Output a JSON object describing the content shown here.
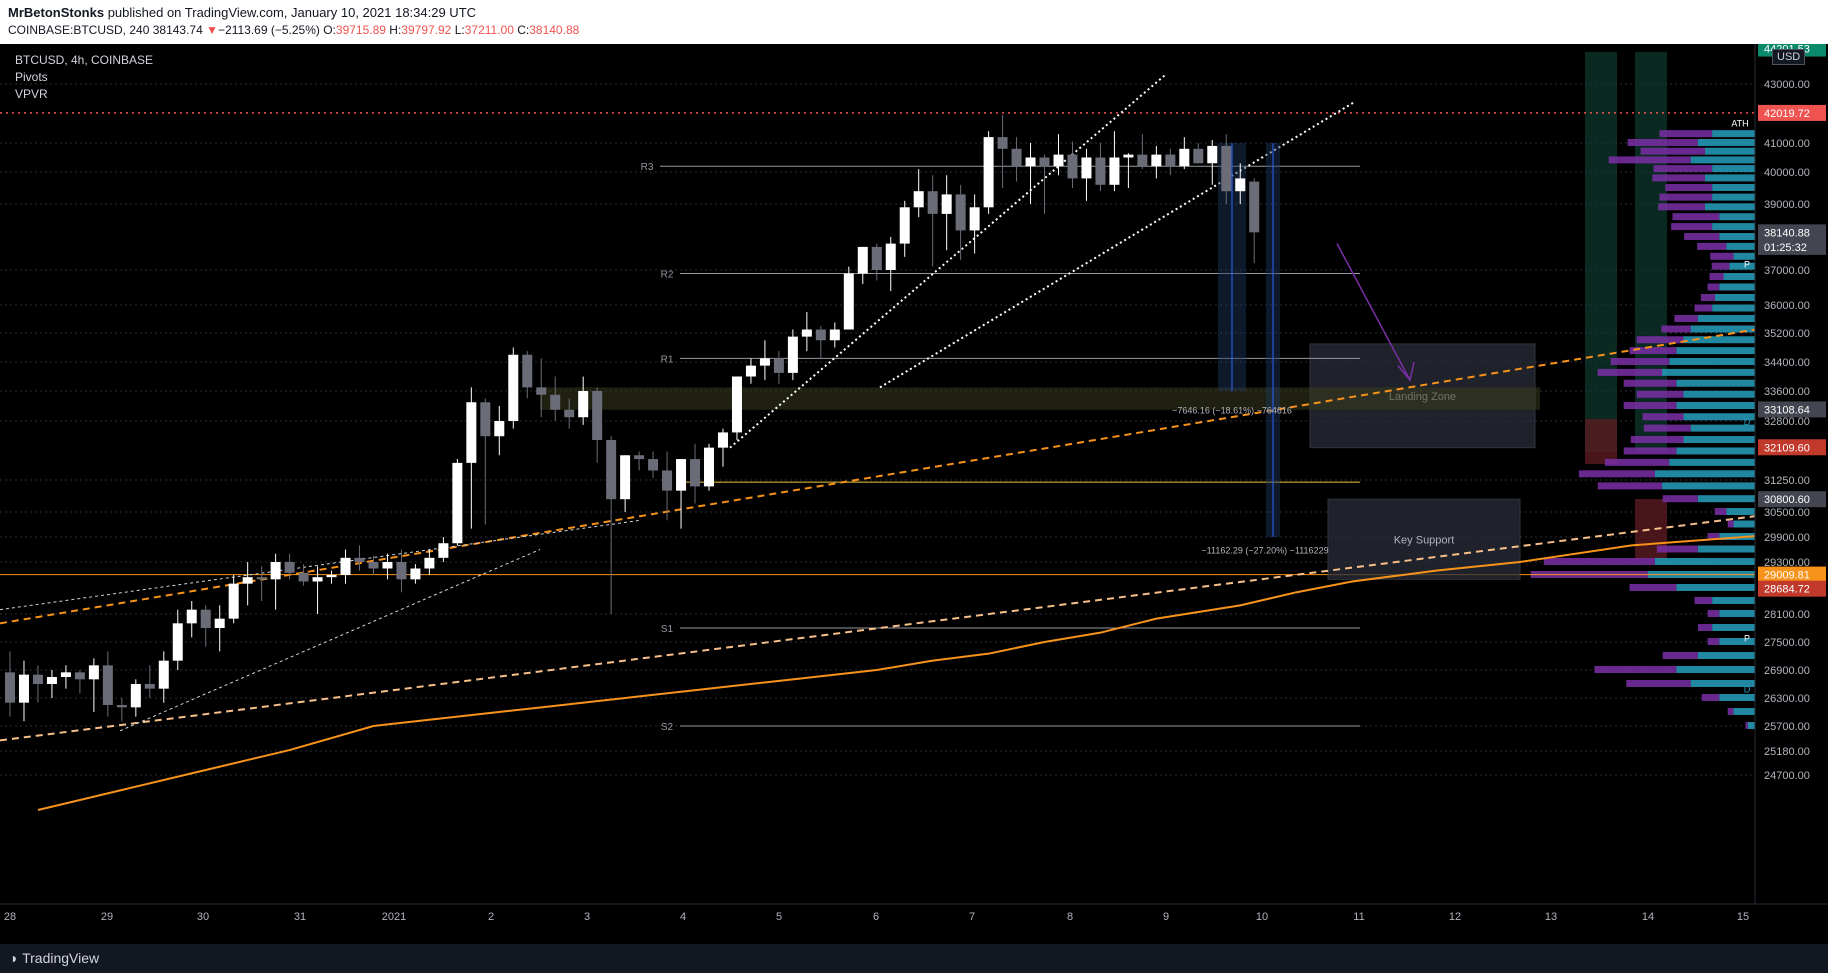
{
  "header": {
    "author": "MrBetonStonks",
    "published": "published on TradingView.com, January 10, 2021 18:34:29 UTC",
    "symbol": "COINBASE:BTCUSD, 240",
    "last": "38143.74",
    "arrow": "▼",
    "change": "−2113.69 (−5.25%)",
    "o_label": "O:",
    "o_val": "39715.89",
    "h_label": "H:",
    "h_val": "39797.92",
    "l_label": "L:",
    "l_val": "37211.00",
    "c_label": "C:",
    "c_val": "38140.88"
  },
  "legend": {
    "title": "BTCUSD, 4h, COINBASE",
    "indicators": [
      "Pivots",
      "VPVR"
    ]
  },
  "currency": "USD",
  "footer": {
    "brand": "TradingView"
  },
  "colors": {
    "background": "#000000",
    "bull": "#ffffff",
    "bear": "#6a6d78",
    "ema": "#f7931a",
    "trend_dashed": "#f7931a",
    "ath_line": "#ef5350",
    "vpvr_up": "#26a0bd",
    "vpvr_down": "#7b2fa6"
  },
  "chart_data": {
    "type": "candlestick",
    "y_axis": {
      "ylim": [
        24400,
        45100
      ],
      "ticks": [
        43000,
        41000,
        40000,
        39000,
        37000,
        36000,
        35200,
        34400,
        33600,
        32800,
        31250,
        30500,
        29900,
        29300,
        28100,
        27500,
        26900,
        26300,
        25700,
        25180,
        24700
      ]
    },
    "x_axis": {
      "ticks": [
        "28",
        "29",
        "30",
        "31",
        "2021",
        "2",
        "3",
        "4",
        "5",
        "6",
        "7",
        "8",
        "9",
        "10",
        "11",
        "12",
        "13",
        "14",
        "15"
      ]
    },
    "price_labels": [
      {
        "value": "44201.53",
        "price": 44201.53,
        "color": "#0a8a6a"
      },
      {
        "value": "42019.72",
        "price": 42019.72,
        "color": "#ef5350"
      },
      {
        "value": "38140.88",
        "price": 38140.88,
        "color": "#434651"
      },
      {
        "value": "01:25:32",
        "price": 37700,
        "color": "#434651"
      },
      {
        "value": "33108.64",
        "price": 33108.64,
        "color": "#434651"
      },
      {
        "value": "32109.60",
        "price": 32109.6,
        "color": "#c0392b"
      },
      {
        "value": "30800.60",
        "price": 30800.6,
        "color": "#434651"
      },
      {
        "value": "29009.81",
        "price": 29009.81,
        "color": "#f7931a"
      },
      {
        "value": "28684.72",
        "price": 28684.72,
        "color": "#c0392b"
      }
    ],
    "candles": [
      {
        "o": 26850,
        "h": 27300,
        "l": 25900,
        "c": 26200
      },
      {
        "o": 26200,
        "h": 27100,
        "l": 25800,
        "c": 26800
      },
      {
        "o": 26800,
        "h": 27000,
        "l": 26200,
        "c": 26600
      },
      {
        "o": 26600,
        "h": 26900,
        "l": 26300,
        "c": 26750
      },
      {
        "o": 26750,
        "h": 27000,
        "l": 26500,
        "c": 26850
      },
      {
        "o": 26850,
        "h": 26900,
        "l": 26400,
        "c": 26700
      },
      {
        "o": 26700,
        "h": 27150,
        "l": 26000,
        "c": 27000
      },
      {
        "o": 27000,
        "h": 27300,
        "l": 25900,
        "c": 26150
      },
      {
        "o": 26150,
        "h": 26300,
        "l": 25800,
        "c": 26100
      },
      {
        "o": 26100,
        "h": 26700,
        "l": 25900,
        "c": 26600
      },
      {
        "o": 26600,
        "h": 27000,
        "l": 26300,
        "c": 26500
      },
      {
        "o": 26500,
        "h": 27300,
        "l": 26200,
        "c": 27100
      },
      {
        "o": 27100,
        "h": 28200,
        "l": 26900,
        "c": 27900
      },
      {
        "o": 27900,
        "h": 28400,
        "l": 27600,
        "c": 28200
      },
      {
        "o": 28200,
        "h": 28300,
        "l": 27400,
        "c": 27800
      },
      {
        "o": 27800,
        "h": 28300,
        "l": 27300,
        "c": 28000
      },
      {
        "o": 28000,
        "h": 29000,
        "l": 27900,
        "c": 28800
      },
      {
        "o": 28800,
        "h": 29300,
        "l": 28300,
        "c": 28950
      },
      {
        "o": 28950,
        "h": 29200,
        "l": 28400,
        "c": 28900
      },
      {
        "o": 28900,
        "h": 29500,
        "l": 28200,
        "c": 29300
      },
      {
        "o": 29300,
        "h": 29500,
        "l": 28900,
        "c": 29050
      },
      {
        "o": 29050,
        "h": 29250,
        "l": 28750,
        "c": 28850
      },
      {
        "o": 28850,
        "h": 29200,
        "l": 28100,
        "c": 28950
      },
      {
        "o": 28950,
        "h": 29100,
        "l": 28800,
        "c": 29000
      },
      {
        "o": 29000,
        "h": 29600,
        "l": 28800,
        "c": 29400
      },
      {
        "o": 29400,
        "h": 29700,
        "l": 29100,
        "c": 29300
      },
      {
        "o": 29300,
        "h": 29450,
        "l": 29000,
        "c": 29150
      },
      {
        "o": 29150,
        "h": 29500,
        "l": 28900,
        "c": 29300
      },
      {
        "o": 29300,
        "h": 29600,
        "l": 28600,
        "c": 28900
      },
      {
        "o": 28900,
        "h": 29250,
        "l": 28800,
        "c": 29150
      },
      {
        "o": 29150,
        "h": 29600,
        "l": 29000,
        "c": 29400
      },
      {
        "o": 29400,
        "h": 29900,
        "l": 29300,
        "c": 29750
      },
      {
        "o": 29750,
        "h": 31800,
        "l": 29700,
        "c": 31700
      },
      {
        "o": 31700,
        "h": 33700,
        "l": 30100,
        "c": 33300
      },
      {
        "o": 33300,
        "h": 33400,
        "l": 30200,
        "c": 32400
      },
      {
        "o": 32400,
        "h": 33200,
        "l": 31900,
        "c": 32800
      },
      {
        "o": 32800,
        "h": 34800,
        "l": 32600,
        "c": 34600
      },
      {
        "o": 34600,
        "h": 34700,
        "l": 33400,
        "c": 33700
      },
      {
        "o": 33700,
        "h": 34500,
        "l": 32900,
        "c": 33500
      },
      {
        "o": 33500,
        "h": 34000,
        "l": 32800,
        "c": 33100
      },
      {
        "o": 33100,
        "h": 33400,
        "l": 32600,
        "c": 32900
      },
      {
        "o": 32900,
        "h": 34000,
        "l": 32700,
        "c": 33600
      },
      {
        "o": 33600,
        "h": 33700,
        "l": 31700,
        "c": 32300
      },
      {
        "o": 32300,
        "h": 32400,
        "l": 28100,
        "c": 30800
      },
      {
        "o": 30800,
        "h": 31900,
        "l": 30500,
        "c": 31900
      },
      {
        "o": 31900,
        "h": 32000,
        "l": 31500,
        "c": 31800
      },
      {
        "o": 31800,
        "h": 32000,
        "l": 31300,
        "c": 31500
      },
      {
        "o": 31500,
        "h": 32000,
        "l": 30300,
        "c": 31000
      },
      {
        "o": 31000,
        "h": 31800,
        "l": 30100,
        "c": 31800
      },
      {
        "o": 31800,
        "h": 32200,
        "l": 30700,
        "c": 31100
      },
      {
        "o": 31100,
        "h": 32200,
        "l": 31000,
        "c": 32100
      },
      {
        "o": 32100,
        "h": 32600,
        "l": 31600,
        "c": 32500
      },
      {
        "o": 32500,
        "h": 34000,
        "l": 32300,
        "c": 34000
      },
      {
        "o": 34000,
        "h": 34500,
        "l": 33800,
        "c": 34300
      },
      {
        "o": 34300,
        "h": 35000,
        "l": 33900,
        "c": 34500
      },
      {
        "o": 34500,
        "h": 34700,
        "l": 33800,
        "c": 34100
      },
      {
        "o": 34100,
        "h": 35300,
        "l": 33900,
        "c": 35100
      },
      {
        "o": 35100,
        "h": 35800,
        "l": 34700,
        "c": 35300
      },
      {
        "o": 35300,
        "h": 35400,
        "l": 34500,
        "c": 35000
      },
      {
        "o": 35000,
        "h": 35500,
        "l": 34800,
        "c": 35300
      },
      {
        "o": 35300,
        "h": 37100,
        "l": 35300,
        "c": 36900
      },
      {
        "o": 36900,
        "h": 37700,
        "l": 36600,
        "c": 37700
      },
      {
        "o": 37700,
        "h": 37800,
        "l": 36700,
        "c": 37000
      },
      {
        "o": 37000,
        "h": 38000,
        "l": 36400,
        "c": 37800
      },
      {
        "o": 37800,
        "h": 39100,
        "l": 37400,
        "c": 38900
      },
      {
        "o": 38900,
        "h": 40100,
        "l": 38600,
        "c": 39400
      },
      {
        "o": 39400,
        "h": 39900,
        "l": 37100,
        "c": 38700
      },
      {
        "o": 38700,
        "h": 39900,
        "l": 37600,
        "c": 39300
      },
      {
        "o": 39300,
        "h": 39600,
        "l": 37300,
        "c": 38200
      },
      {
        "o": 38200,
        "h": 39300,
        "l": 37500,
        "c": 38900
      },
      {
        "o": 38900,
        "h": 41400,
        "l": 38700,
        "c": 41200
      },
      {
        "o": 41200,
        "h": 41950,
        "l": 39500,
        "c": 40800
      },
      {
        "o": 40800,
        "h": 41200,
        "l": 39700,
        "c": 40200
      },
      {
        "o": 40200,
        "h": 41000,
        "l": 39000,
        "c": 40500
      },
      {
        "o": 40500,
        "h": 40600,
        "l": 38700,
        "c": 40200
      },
      {
        "o": 40200,
        "h": 41300,
        "l": 39900,
        "c": 40600
      },
      {
        "o": 40600,
        "h": 41050,
        "l": 39500,
        "c": 39800
      },
      {
        "o": 39800,
        "h": 40800,
        "l": 39100,
        "c": 40500
      },
      {
        "o": 40500,
        "h": 41000,
        "l": 39400,
        "c": 39600
      },
      {
        "o": 39600,
        "h": 41400,
        "l": 39400,
        "c": 40500
      },
      {
        "o": 40500,
        "h": 40650,
        "l": 39500,
        "c": 40600
      },
      {
        "o": 40600,
        "h": 41300,
        "l": 40100,
        "c": 40200
      },
      {
        "o": 40200,
        "h": 40900,
        "l": 39800,
        "c": 40600
      },
      {
        "o": 40600,
        "h": 40800,
        "l": 39900,
        "c": 40200
      },
      {
        "o": 40200,
        "h": 41200,
        "l": 40100,
        "c": 40800
      },
      {
        "o": 40800,
        "h": 41000,
        "l": 40300,
        "c": 40300
      },
      {
        "o": 40300,
        "h": 41100,
        "l": 39600,
        "c": 40900
      },
      {
        "o": 40900,
        "h": 41300,
        "l": 39000,
        "c": 39400
      },
      {
        "o": 39400,
        "h": 40300,
        "l": 39000,
        "c": 39800
      },
      {
        "o": 39700,
        "h": 39800,
        "l": 37211,
        "c": 38141
      }
    ],
    "ema_200": [
      [
        2,
        24000
      ],
      [
        8,
        24400
      ],
      [
        14,
        24800
      ],
      [
        20,
        25200
      ],
      [
        26,
        25700
      ],
      [
        32,
        25900
      ],
      [
        38,
        26100
      ],
      [
        44,
        26300
      ],
      [
        50,
        26500
      ],
      [
        56,
        26700
      ],
      [
        62,
        26900
      ],
      [
        66,
        27100
      ],
      [
        70,
        27250
      ],
      [
        74,
        27500
      ],
      [
        78,
        27700
      ],
      [
        82,
        28000
      ],
      [
        88,
        28300
      ],
      [
        92,
        28600
      ],
      [
        96,
        28850
      ],
      [
        102,
        29100
      ],
      [
        108,
        29300
      ],
      [
        116,
        29700
      ],
      [
        128,
        30000
      ],
      [
        140,
        30200
      ],
      [
        158,
        30500
      ]
    ],
    "pivots": [
      {
        "label": "R3",
        "price": 40200
      },
      {
        "label": "R2",
        "price": 36900
      },
      {
        "label": "R1",
        "price": 34500
      },
      {
        "label": "P",
        "price": 31200
      },
      {
        "label": "S1",
        "price": 27800
      },
      {
        "label": "S2",
        "price": 25700
      }
    ],
    "ath": 42019.72,
    "zones": [
      {
        "label": "Landing Zone",
        "from": 32100,
        "to": 34900
      },
      {
        "label": "Key Support",
        "from": 28900,
        "to": 30800
      }
    ],
    "measures": [
      {
        "label": "−7646.16 (−18.61%) −764616"
      },
      {
        "label": "−11162.29 (−27.20%) −1116229"
      }
    ],
    "annotations": [
      {
        "text": "ATH"
      },
      {
        "text": "P"
      },
      {
        "text": "P"
      },
      {
        "text": "D"
      },
      {
        "text": "D"
      }
    ],
    "vpvr": [
      {
        "price": 41300,
        "up": 0.3,
        "down": 0.45
      },
      {
        "price": 41000,
        "up": 0.4,
        "down": 0.6
      },
      {
        "price": 40700,
        "up": 0.35,
        "down": 0.55
      },
      {
        "price": 40400,
        "up": 0.45,
        "down": 0.7
      },
      {
        "price": 40100,
        "up": 0.3,
        "down": 0.5
      },
      {
        "price": 39800,
        "up": 0.35,
        "down": 0.45
      },
      {
        "price": 39500,
        "up": 0.3,
        "down": 0.4
      },
      {
        "price": 39200,
        "up": 0.3,
        "down": 0.45
      },
      {
        "price": 38900,
        "up": 0.35,
        "down": 0.4
      },
      {
        "price": 38600,
        "up": 0.25,
        "down": 0.4
      },
      {
        "price": 38300,
        "up": 0.3,
        "down": 0.35
      },
      {
        "price": 38000,
        "up": 0.25,
        "down": 0.3
      },
      {
        "price": 37700,
        "up": 0.2,
        "down": 0.25
      },
      {
        "price": 37400,
        "up": 0.15,
        "down": 0.2
      },
      {
        "price": 37100,
        "up": 0.18,
        "down": 0.15
      },
      {
        "price": 36800,
        "up": 0.22,
        "down": 0.12
      },
      {
        "price": 36500,
        "up": 0.25,
        "down": 0.1
      },
      {
        "price": 36200,
        "up": 0.28,
        "down": 0.12
      },
      {
        "price": 35900,
        "up": 0.3,
        "down": 0.15
      },
      {
        "price": 35600,
        "up": 0.4,
        "down": 0.2
      },
      {
        "price": 35300,
        "up": 0.45,
        "down": 0.25
      },
      {
        "price": 35000,
        "up": 0.5,
        "down": 0.4
      },
      {
        "price": 34700,
        "up": 0.55,
        "down": 0.4
      },
      {
        "price": 34400,
        "up": 0.6,
        "down": 0.5
      },
      {
        "price": 34100,
        "up": 0.65,
        "down": 0.55
      },
      {
        "price": 33800,
        "up": 0.55,
        "down": 0.45
      },
      {
        "price": 33500,
        "up": 0.5,
        "down": 0.4
      },
      {
        "price": 33200,
        "up": 0.55,
        "down": 0.45
      },
      {
        "price": 32900,
        "up": 0.5,
        "down": 0.35
      },
      {
        "price": 32600,
        "up": 0.45,
        "down": 0.4
      },
      {
        "price": 32300,
        "up": 0.5,
        "down": 0.45
      },
      {
        "price": 32000,
        "up": 0.55,
        "down": 0.45
      },
      {
        "price": 31700,
        "up": 0.6,
        "down": 0.55
      },
      {
        "price": 31400,
        "up": 0.7,
        "down": 0.65
      },
      {
        "price": 31100,
        "up": 0.65,
        "down": 0.55
      },
      {
        "price": 30800,
        "up": 0.4,
        "down": 0.3
      },
      {
        "price": 30500,
        "up": 0.2,
        "down": 0.1
      },
      {
        "price": 30200,
        "up": 0.15,
        "down": 0.05
      },
      {
        "price": 29900,
        "up": 0.25,
        "down": 0.1
      },
      {
        "price": 29600,
        "up": 0.4,
        "down": 0.35
      },
      {
        "price": 29300,
        "up": 0.7,
        "down": 0.95
      },
      {
        "price": 29000,
        "up": 0.75,
        "down": 1.0
      },
      {
        "price": 28700,
        "up": 0.55,
        "down": 0.4
      },
      {
        "price": 28400,
        "up": 0.3,
        "down": 0.15
      },
      {
        "price": 28100,
        "up": 0.25,
        "down": 0.1
      },
      {
        "price": 27800,
        "up": 0.3,
        "down": 0.12
      },
      {
        "price": 27500,
        "up": 0.25,
        "down": 0.1
      },
      {
        "price": 27200,
        "up": 0.4,
        "down": 0.3
      },
      {
        "price": 26900,
        "up": 0.55,
        "down": 0.7
      },
      {
        "price": 26600,
        "up": 0.45,
        "down": 0.55
      },
      {
        "price": 26300,
        "up": 0.25,
        "down": 0.15
      },
      {
        "price": 26000,
        "up": 0.15,
        "down": 0.05
      },
      {
        "price": 25700,
        "up": 0.05,
        "down": 0.02
      }
    ]
  }
}
